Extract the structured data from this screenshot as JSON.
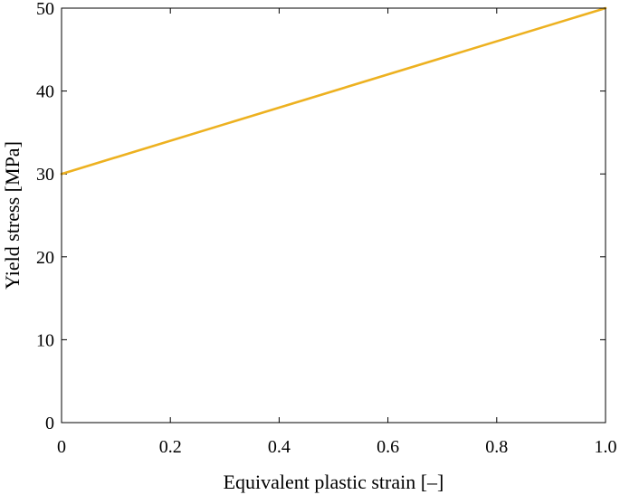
{
  "chart_data": {
    "type": "line",
    "title": "",
    "xlabel": "Equivalent plastic strain [–]",
    "ylabel": "Yield stress [MPa]",
    "xlim": [
      0,
      1.0
    ],
    "ylim": [
      0,
      50
    ],
    "x_ticks": [
      0,
      0.2,
      0.4,
      0.6,
      0.8,
      1.0
    ],
    "x_tick_labels": [
      "0",
      "0.2",
      "0.4",
      "0.6",
      "0.8",
      "1.0"
    ],
    "y_ticks": [
      0,
      10,
      20,
      30,
      40,
      50
    ],
    "y_tick_labels": [
      "0",
      "10",
      "20",
      "30",
      "40",
      "50"
    ],
    "grid": false,
    "legend": "none",
    "series": [
      {
        "x": [
          0,
          1.0
        ],
        "y": [
          30,
          50
        ],
        "color": "#EDB120"
      }
    ]
  }
}
